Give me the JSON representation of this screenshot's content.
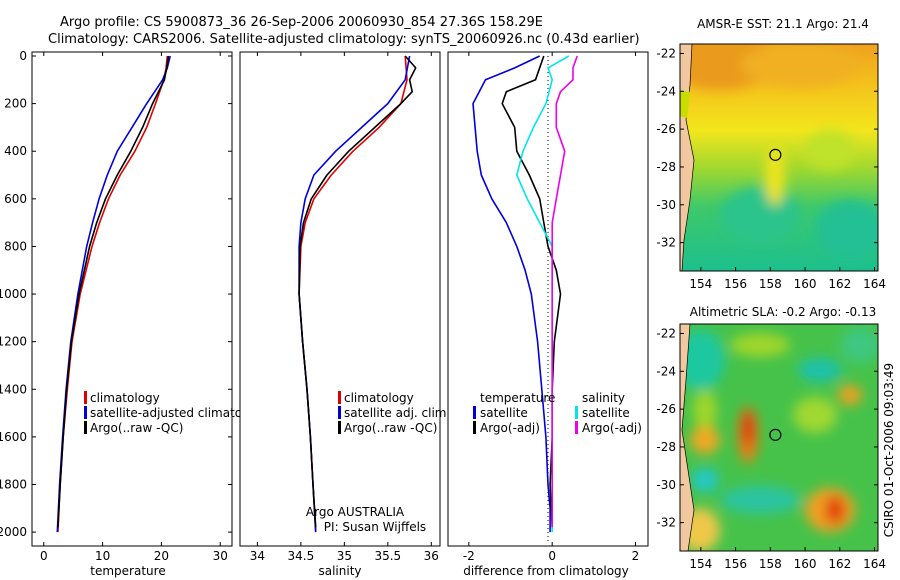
{
  "header": {
    "line1": "Argo profile: CS 5900873_36 26-Sep-2006 20060930_854 27.36S 158.29E",
    "line2": "Climatology: CARS2006. Satellite-adjusted climatology: synTS_20060926.nc (0.43d earlier)"
  },
  "footer": {
    "agency": "Argo AUSTRALIA",
    "pi": "PI: Susan Wijffels",
    "stamp": "CSIRO 01-Oct-2006 09:03:49"
  },
  "colors": {
    "climatology": "#e00000",
    "satellite": "#0000dd",
    "argo": "#000000",
    "sal_satellite": "#00e5ee",
    "sal_argo": "#ee00ee"
  },
  "chart_data": [
    {
      "type": "line",
      "name": "temperature",
      "xlabel": "temperature",
      "ylabel": "",
      "ylim": [
        0,
        2050
      ],
      "xlim": [
        -2,
        32
      ],
      "yticks": [
        0,
        200,
        400,
        600,
        800,
        1000,
        1200,
        1400,
        1600,
        1800,
        2000
      ],
      "xticks": [
        0,
        10,
        20,
        30
      ],
      "legend": [
        "climatology",
        "satellite-adjusted climatolog",
        "Argo(..raw -QC)"
      ],
      "series": [
        {
          "name": "climatology",
          "depth": [
            0,
            50,
            100,
            200,
            300,
            400,
            500,
            600,
            700,
            800,
            1000,
            1200,
            1400,
            1600,
            1800,
            2000
          ],
          "values": [
            21,
            20.8,
            20.4,
            19,
            17.5,
            15.5,
            13,
            11,
            9.5,
            8.2,
            6.2,
            4.8,
            4,
            3.3,
            2.8,
            2.4
          ]
        },
        {
          "name": "satellite",
          "depth": [
            0,
            50,
            100,
            200,
            300,
            400,
            500,
            600,
            700,
            800,
            1000,
            1200,
            1400,
            1600,
            1800,
            2000
          ],
          "values": [
            21.5,
            21,
            20.2,
            17.5,
            15,
            12.5,
            10.8,
            9.4,
            8.3,
            7.3,
            5.8,
            4.6,
            3.8,
            3.2,
            2.7,
            2.3
          ]
        },
        {
          "name": "argo",
          "depth": [
            0,
            50,
            100,
            200,
            300,
            400,
            500,
            600,
            700,
            800,
            1000,
            1200,
            1400,
            1600,
            1800,
            1980
          ],
          "values": [
            21.2,
            20.9,
            20.5,
            18.5,
            16.8,
            14.8,
            12.5,
            10.5,
            9,
            7.8,
            6,
            4.7,
            3.9,
            3.3,
            2.8,
            2.4
          ]
        }
      ]
    },
    {
      "type": "line",
      "name": "salinity",
      "xlabel": "salinity",
      "ylim": [
        0,
        2050
      ],
      "xlim": [
        33.8,
        36.1
      ],
      "xticks": [
        34,
        34.5,
        35,
        35.5,
        36
      ],
      "legend": [
        "climatology",
        "satellite adj. clim.",
        "Argo(..raw -QC)"
      ],
      "series": [
        {
          "name": "climatology",
          "depth": [
            0,
            100,
            200,
            300,
            400,
            500,
            600,
            700,
            800,
            1000,
            1200,
            1400,
            1600,
            1800,
            2000
          ],
          "values": [
            35.7,
            35.72,
            35.65,
            35.4,
            35.1,
            34.85,
            34.65,
            34.55,
            34.5,
            34.48,
            34.52,
            34.57,
            34.61,
            34.64,
            34.67
          ]
        },
        {
          "name": "satellite",
          "depth": [
            0,
            100,
            200,
            300,
            400,
            500,
            600,
            700,
            800,
            1000,
            1200,
            1400,
            1600,
            1800,
            2000
          ],
          "values": [
            35.75,
            35.7,
            35.5,
            35.2,
            34.9,
            34.65,
            34.55,
            34.5,
            34.48,
            34.48,
            34.52,
            34.57,
            34.61,
            34.64,
            34.67
          ]
        },
        {
          "name": "argo",
          "depth": [
            0,
            50,
            100,
            150,
            200,
            300,
            400,
            500,
            600,
            700,
            800,
            1000,
            1200,
            1400,
            1600,
            1800,
            1980
          ],
          "values": [
            35.7,
            35.82,
            35.75,
            35.78,
            35.65,
            35.35,
            35.05,
            34.8,
            34.62,
            34.53,
            34.49,
            34.48,
            34.52,
            34.57,
            34.61,
            34.64,
            34.67
          ]
        }
      ]
    },
    {
      "type": "line",
      "name": "difference",
      "xlabel": "difference from climatology",
      "ylim": [
        0,
        2050
      ],
      "xlim": [
        -2.5,
        2.3
      ],
      "xticks": [
        -2,
        0,
        2
      ],
      "legend_temperature": [
        "temperature",
        "satellite",
        "Argo(-adj)"
      ],
      "legend_salinity": [
        "salinity",
        "satellite",
        "Argo(-adj)"
      ],
      "series": [
        {
          "name": "temperature satellite",
          "depth": [
            0,
            50,
            100,
            200,
            300,
            400,
            500,
            600,
            700,
            800,
            900,
            1000,
            1200,
            1400,
            1600,
            1800,
            1900,
            2000
          ],
          "values": [
            -0.3,
            -0.9,
            -1.6,
            -1.9,
            -1.85,
            -1.8,
            -1.7,
            -1.45,
            -1.1,
            -0.85,
            -0.65,
            -0.5,
            -0.35,
            -0.25,
            -0.15,
            -0.1,
            -0.05,
            -0.05
          ]
        },
        {
          "name": "temperature Argo",
          "depth": [
            0,
            100,
            150,
            200,
            300,
            400,
            500,
            600,
            700,
            800,
            900,
            1000,
            1200,
            1400,
            1600,
            1800,
            1980
          ],
          "values": [
            -0.2,
            -0.4,
            -1.1,
            -1.2,
            -0.9,
            -0.85,
            -0.55,
            -0.3,
            -0.2,
            -0.1,
            0.1,
            0.2,
            0.05,
            0,
            0,
            -0.05,
            0
          ]
        },
        {
          "name": "salinity satellite",
          "depth": [
            0,
            50,
            100,
            200,
            300,
            400,
            500,
            600,
            700,
            800,
            1000,
            1200,
            1400,
            1600,
            1800,
            2000
          ],
          "values": [
            0.4,
            -0.1,
            0,
            -0.15,
            -0.45,
            -0.7,
            -0.85,
            -0.6,
            -0.3,
            0,
            0,
            0,
            0,
            0,
            0,
            0
          ]
        },
        {
          "name": "salinity Argo",
          "depth": [
            0,
            50,
            100,
            150,
            200,
            300,
            400,
            500,
            600,
            700,
            800,
            1000,
            1200,
            1400,
            1600,
            1800,
            1980
          ],
          "values": [
            0.6,
            0.5,
            0.5,
            0.2,
            0.1,
            0.1,
            0.3,
            0.2,
            0.1,
            0,
            0,
            0,
            0,
            0,
            0,
            0,
            0
          ]
        }
      ]
    },
    {
      "type": "heatmap",
      "name": "sst-map",
      "title": "AMSR-E SST: 21.1 Argo: 21.4",
      "xlim": [
        152.8,
        164.2
      ],
      "ylim": [
        -33.5,
        -21.5
      ],
      "xticks": [
        154,
        156,
        158,
        160,
        162,
        164
      ],
      "yticks": [
        -22,
        -24,
        -26,
        -28,
        -30,
        -32
      ],
      "marker": {
        "lon": 158.29,
        "lat": -27.36
      }
    },
    {
      "type": "heatmap",
      "name": "sla-map",
      "title": "Altimetric SLA: -0.2 Argo: -0.13",
      "xlim": [
        152.8,
        164.2
      ],
      "ylim": [
        -33.5,
        -21.5
      ],
      "xticks": [
        154,
        156,
        158,
        160,
        162,
        164
      ],
      "yticks": [
        -22,
        -24,
        -26,
        -28,
        -30,
        -32
      ],
      "marker": {
        "lon": 158.29,
        "lat": -27.36
      }
    }
  ]
}
